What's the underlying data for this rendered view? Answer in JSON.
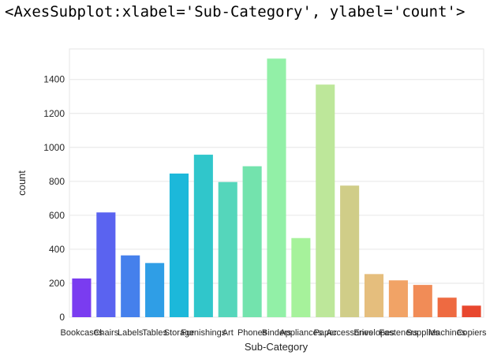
{
  "output_header": "<AxesSubplot:xlabel='Sub-Category', ylabel='count'>",
  "chart_data": {
    "type": "bar",
    "xlabel": "Sub-Category",
    "ylabel": "count",
    "ylim": [
      0,
      1580
    ],
    "yticks": [
      0,
      200,
      400,
      600,
      800,
      1000,
      1200,
      1400
    ],
    "grid": true,
    "legend": "none",
    "categories": [
      "Bookcases",
      "Chairs",
      "Labels",
      "Tables",
      "Storage",
      "Furnishings",
      "Art",
      "Phones",
      "Binders",
      "Appliances",
      "Paper",
      "Accessories",
      "Envelopes",
      "Fasteners",
      "Supplies",
      "Machines",
      "Copiers"
    ],
    "values": [
      228,
      617,
      364,
      319,
      846,
      957,
      796,
      889,
      1523,
      466,
      1370,
      775,
      254,
      217,
      190,
      115,
      68
    ],
    "colors": [
      "#7a3cf0",
      "#5a63f0",
      "#4580ec",
      "#2f9ee6",
      "#1cb8da",
      "#30c6cb",
      "#55d6bb",
      "#73e3ad",
      "#92f0a7",
      "#a6f29b",
      "#bde79a",
      "#d0cd88",
      "#e5be7d",
      "#f1a366",
      "#f18c57",
      "#ee6a41",
      "#e8472e"
    ]
  }
}
